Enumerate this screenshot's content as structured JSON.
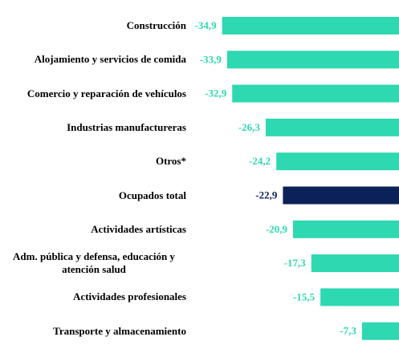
{
  "chart_data": {
    "type": "barh",
    "categories": [
      "Construcción",
      "Alojamiento y servicios de comida",
      "Comercio y reparación de vehículos",
      "Industrias manufactureras",
      "Otros*",
      "Ocupados total",
      "Actividades artísticas",
      "Adm. pública y defensa, educación y atención salud",
      "Actividades profesionales",
      "Transporte y almacenamiento"
    ],
    "values": [
      -34.9,
      -33.9,
      -32.9,
      -26.3,
      -24.2,
      -22.9,
      -20.9,
      -17.3,
      -15.5,
      -7.3
    ],
    "value_labels": [
      "-34,9",
      "-33,9",
      "-32,9",
      "-26,3",
      "-24,2",
      "-22,9",
      "-20,9",
      "-17,3",
      "-15,5",
      "-7,3"
    ],
    "colors": [
      "#2ed8b1",
      "#2ed8b1",
      "#2ed8b1",
      "#2ed8b1",
      "#2ed8b1",
      "#0b2258",
      "#2ed8b1",
      "#2ed8b1",
      "#2ed8b1",
      "#2ed8b1"
    ],
    "xlim": [
      -35,
      0
    ]
  }
}
